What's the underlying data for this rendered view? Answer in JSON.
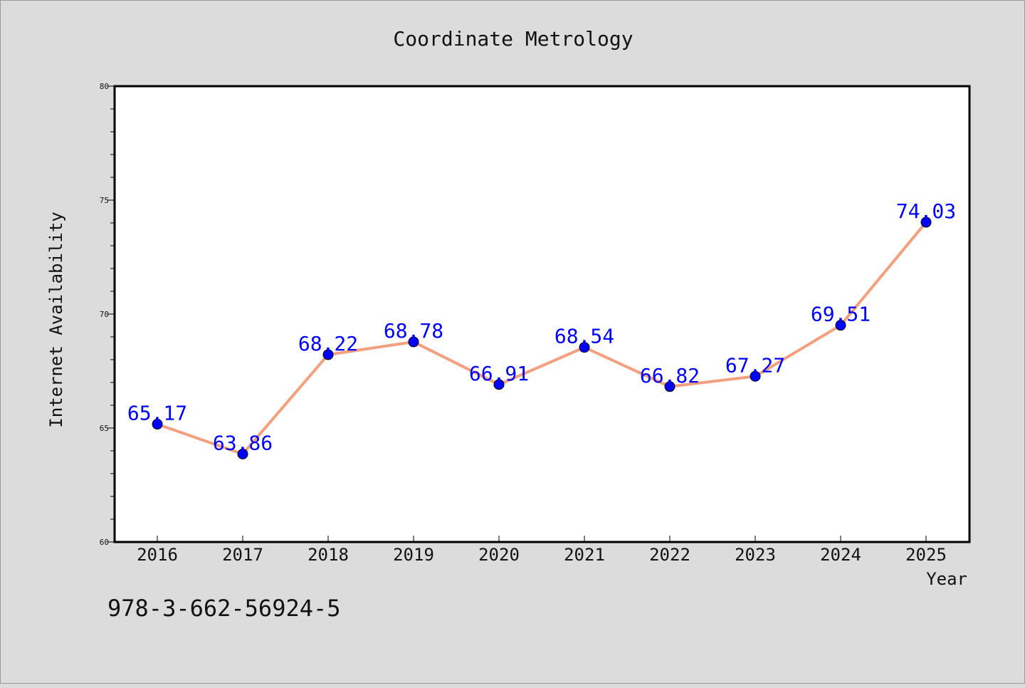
{
  "chart_data": {
    "type": "line",
    "title": "Coordinate Metrology",
    "xlabel": "Year",
    "ylabel": "Internet Availability",
    "categories": [
      "2016",
      "2017",
      "2018",
      "2019",
      "2020",
      "2021",
      "2022",
      "2023",
      "2024",
      "2025"
    ],
    "series": [
      {
        "values": [
          65.17,
          63.86,
          68.22,
          68.78,
          66.91,
          68.54,
          66.82,
          67.27,
          69.51,
          74.03
        ],
        "labels": [
          "65.17",
          "63.86",
          "68.22",
          "68.78",
          "66.91",
          "68.54",
          "66.82",
          "67.27",
          "69.51",
          "74.03"
        ],
        "line_color": "#f4a07e",
        "marker_color": "#0000ff"
      }
    ],
    "ylim": [
      60,
      80
    ],
    "yticks": [
      60,
      65,
      70,
      75,
      80
    ],
    "ytick_labels": [
      "60",
      "65",
      "70",
      "75",
      "80"
    ],
    "grid": false,
    "legend": "none"
  },
  "footer": {
    "isbn": "978-3-662-56924-5"
  },
  "colors": {
    "background": "#dcdcdc",
    "plot_area": "#ffffff",
    "line": "#f4a07e",
    "marker": "#0000ff",
    "label": "#0000ff"
  }
}
